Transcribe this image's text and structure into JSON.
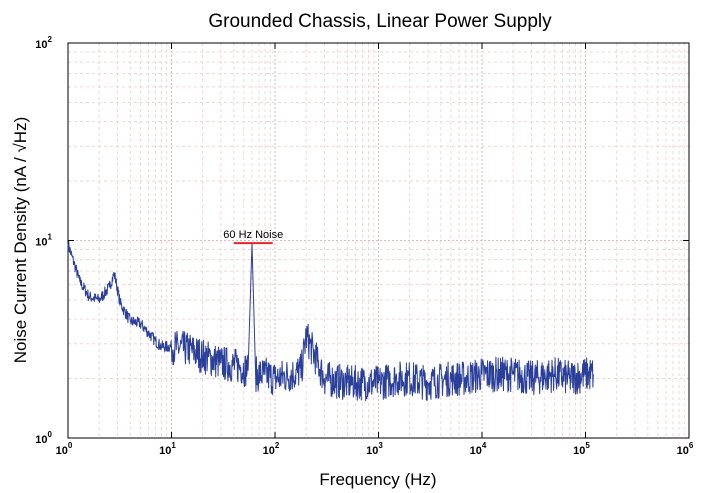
{
  "chart_data": {
    "type": "line",
    "title": "Grounded Chassis, Linear Power Supply",
    "xlabel": "Frequency (Hz)",
    "ylabel": "Noise Current Density (nA / √Hz)",
    "xscale": "log",
    "yscale": "log",
    "xlim": [
      1,
      1000000
    ],
    "ylim": [
      1,
      100
    ],
    "grid": true,
    "x_ticks": [
      {
        "base": "10",
        "exp": "0"
      },
      {
        "base": "10",
        "exp": "1"
      },
      {
        "base": "10",
        "exp": "2"
      },
      {
        "base": "10",
        "exp": "3"
      },
      {
        "base": "10",
        "exp": "4"
      },
      {
        "base": "10",
        "exp": "5"
      },
      {
        "base": "10",
        "exp": "6"
      }
    ],
    "y_ticks": [
      {
        "base": "10",
        "exp": "0"
      },
      {
        "base": "10",
        "exp": "1"
      },
      {
        "base": "10",
        "exp": "2"
      }
    ],
    "series": [
      {
        "color": "#2a3f9a",
        "x": [
          1,
          1.3,
          1.6,
          2,
          2.5,
          2.8,
          3.2,
          4,
          5,
          6,
          7,
          8,
          10,
          15,
          20,
          30,
          45,
          55,
          60,
          65,
          80,
          100,
          150,
          180,
          200,
          300,
          500,
          700,
          1000,
          1500,
          2000,
          3000,
          5000,
          7000,
          10000,
          15000,
          20000,
          30000,
          50000,
          70000,
          100000,
          120000
        ],
        "y": [
          9.6,
          6.2,
          5.2,
          5.0,
          5.8,
          6.8,
          4.8,
          3.9,
          3.8,
          3.4,
          3.1,
          2.9,
          2.9,
          2.8,
          2.6,
          2.4,
          2.3,
          2.2,
          9.7,
          2.1,
          2.1,
          2.0,
          2.1,
          2.2,
          3.3,
          2.0,
          1.9,
          1.9,
          1.9,
          2.0,
          2.0,
          1.9,
          2.0,
          2.0,
          2.1,
          2.1,
          2.1,
          2.0,
          2.1,
          2.0,
          2.1,
          2.1
        ]
      }
    ],
    "annotations": [
      {
        "text": "60 Hz Noise",
        "x": 60,
        "y": 9.7,
        "color": "#e0262a",
        "x_from": 40,
        "x_to": 95
      }
    ]
  }
}
